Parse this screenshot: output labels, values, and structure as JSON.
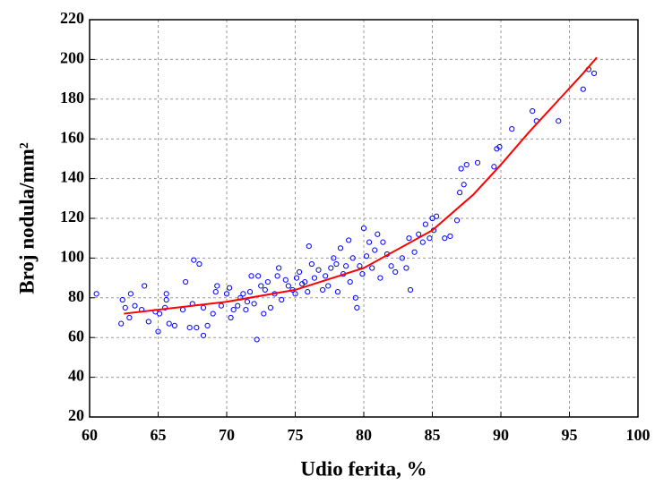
{
  "chart_data": {
    "type": "scatter",
    "xlabel": "Udio ferita, %",
    "ylabel": "Broj nodula/mm²",
    "xlim": [
      60,
      100
    ],
    "xticks": [
      60,
      65,
      70,
      75,
      80,
      85,
      90,
      95,
      100
    ],
    "ylim": [
      20,
      220
    ],
    "yticks": [
      20,
      40,
      60,
      80,
      100,
      120,
      140,
      160,
      180,
      200,
      220
    ],
    "grid": true,
    "series": [
      {
        "type": "scatter",
        "color": "#0000ff",
        "x": [
          60.5,
          62.3,
          62.4,
          62.6,
          62.9,
          63,
          63.3,
          63.8,
          64,
          64.3,
          64.8,
          65,
          65.1,
          65.5,
          65.6,
          65.6,
          65.8,
          66.2,
          66.8,
          67,
          67.3,
          67.5,
          67.6,
          67.8,
          68,
          68.3,
          68.3,
          68.6,
          69,
          69.2,
          69.3,
          69.6,
          70,
          70.2,
          70.3,
          70.5,
          70.8,
          71,
          71.2,
          71.4,
          71.5,
          71.7,
          71.8,
          72,
          72.2,
          72.3,
          72.5,
          72.7,
          72.8,
          73,
          73.2,
          73.5,
          73.7,
          73.8,
          74,
          74.3,
          74.5,
          74.8,
          75,
          75.1,
          75.3,
          75.5,
          75.7,
          75.9,
          76,
          76.2,
          76.4,
          76.7,
          77,
          77.2,
          77.4,
          77.6,
          77.8,
          78,
          78.1,
          78.3,
          78.5,
          78.7,
          78.9,
          79,
          79.2,
          79.4,
          79.5,
          79.7,
          79.9,
          80,
          80.2,
          80.4,
          80.6,
          80.8,
          81,
          81.2,
          81.4,
          81.7,
          82,
          82.3,
          82.8,
          83.1,
          83.3,
          83.4,
          83.7,
          84,
          84.3,
          84.5,
          84.8,
          85,
          85.1,
          85.3,
          85.9,
          86.3,
          86.8,
          87,
          87.1,
          87.3,
          87.5,
          88.3,
          89.5,
          89.7,
          89.9,
          90.8,
          92.3,
          92.6,
          94.2,
          96,
          96.4,
          96.8
        ],
        "values": [
          82,
          67,
          79,
          75,
          70,
          82,
          76,
          74,
          86,
          68,
          73,
          63,
          72,
          75,
          79,
          82,
          67,
          66,
          74,
          88,
          65,
          77,
          99,
          65,
          97,
          75,
          61,
          66,
          72,
          83,
          86,
          76,
          82,
          85,
          70,
          74,
          76,
          80,
          82,
          74,
          78,
          83,
          91,
          77,
          59,
          91,
          86,
          72,
          84,
          88,
          75,
          82,
          91,
          95,
          79,
          89,
          86,
          84,
          82,
          90,
          93,
          87,
          88,
          83,
          106,
          97,
          90,
          94,
          84,
          91,
          86,
          95,
          100,
          97,
          83,
          105,
          92,
          96,
          109,
          88,
          100,
          80,
          75,
          96,
          92,
          115,
          101,
          108,
          95,
          104,
          112,
          90,
          108,
          102,
          96,
          93,
          100,
          95,
          110,
          84,
          103,
          112,
          108,
          117,
          110,
          120,
          114,
          121,
          110,
          111,
          119,
          133,
          145,
          137,
          147,
          148,
          146,
          155,
          156,
          165,
          174,
          169,
          169,
          185,
          195,
          193
        ]
      },
      {
        "type": "line",
        "color": "#ff0000",
        "x": [
          62.5,
          65,
          70,
          75,
          80,
          85,
          88,
          90,
          92,
          94,
          96,
          97
        ],
        "values": [
          72,
          74,
          78,
          84,
          95,
          114,
          132,
          147,
          163,
          178,
          193,
          201
        ]
      }
    ]
  }
}
